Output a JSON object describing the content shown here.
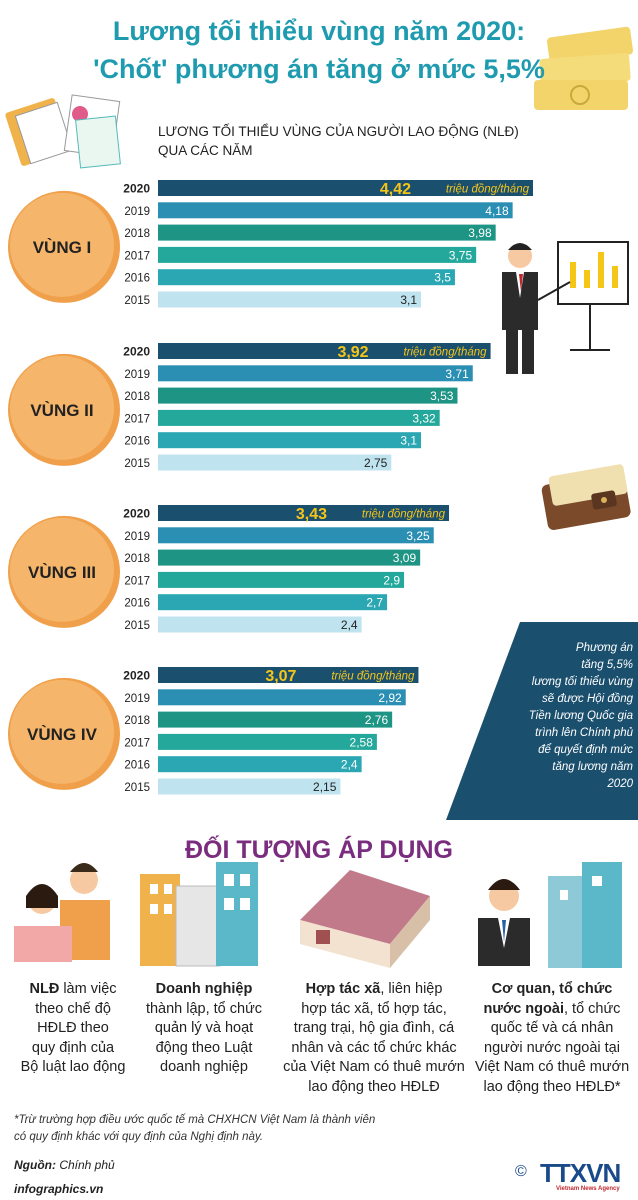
{
  "header": {
    "title_line1": "Lương tối thiểu vùng năm 2020:",
    "title_line2": "'Chốt' phương án tăng ở mức 5,5%",
    "subtitle_line1": "LƯƠNG TỐI THIỂU VÙNG CỦA NGƯỜI LAO ĐỘNG (NLĐ)",
    "subtitle_line2": "QUA CÁC NĂM"
  },
  "chart_data": {
    "type": "bar",
    "orientation": "horizontal",
    "unit_label": "triệu đồng/tháng",
    "groups": [
      {
        "name": "VÙNG I",
        "years": [
          "2020",
          "2019",
          "2018",
          "2017",
          "2016",
          "2015"
        ],
        "values": [
          4.42,
          4.18,
          3.98,
          3.75,
          3.5,
          3.1
        ],
        "value_labels": [
          "4,42",
          "4,18",
          "3,98",
          "3,75",
          "3,5",
          "3,1"
        ]
      },
      {
        "name": "VÙNG II",
        "years": [
          "2020",
          "2019",
          "2018",
          "2017",
          "2016",
          "2015"
        ],
        "values": [
          3.92,
          3.71,
          3.53,
          3.32,
          3.1,
          2.75
        ],
        "value_labels": [
          "3,92",
          "3,71",
          "3,53",
          "3,32",
          "3,1",
          "2,75"
        ]
      },
      {
        "name": "VÙNG III",
        "years": [
          "2020",
          "2019",
          "2018",
          "2017",
          "2016",
          "2015"
        ],
        "values": [
          3.43,
          3.25,
          3.09,
          2.9,
          2.7,
          2.4
        ],
        "value_labels": [
          "3,43",
          "3,25",
          "3,09",
          "2,9",
          "2,7",
          "2,4"
        ]
      },
      {
        "name": "VÙNG IV",
        "years": [
          "2020",
          "2019",
          "2018",
          "2017",
          "2016",
          "2015"
        ],
        "values": [
          3.07,
          2.92,
          2.76,
          2.58,
          2.4,
          2.15
        ],
        "value_labels": [
          "3,07",
          "2,92",
          "2,76",
          "2,58",
          "2,4",
          "2,15"
        ]
      }
    ],
    "colors": [
      "#1b4f6e",
      "#2a8fb3",
      "#1e9484",
      "#24a89c",
      "#2aa7b3",
      "#bfe3ef"
    ],
    "highlight_color": "#f5c518"
  },
  "note": {
    "lines": [
      "Phương án",
      "tăng 5,5%",
      "lương tối thiểu vùng",
      "sẽ được Hội đồng",
      "Tiền lương Quốc gia",
      "trình lên Chính phủ",
      "để quyết định mức",
      "tăng lương năm 2020"
    ]
  },
  "audience": {
    "title": "ĐỐI TƯỢNG ÁP DỤNG",
    "items": [
      {
        "bold": "NLĐ",
        "lines": [
          " làm việc",
          "theo chế độ",
          "HĐLĐ theo",
          "quy định của",
          "Bộ luật lao động"
        ]
      },
      {
        "bold": "Doanh nghiệp",
        "lines": [
          "",
          "thành lập, tổ chức",
          "quản lý và hoạt",
          "động theo Luật",
          "doanh nghiệp"
        ]
      },
      {
        "bold": "Hợp tác xã",
        "lines": [
          ", liên hiệp",
          "hợp tác xã, tổ hợp tác,",
          "trang trại, hộ gia đình, cá",
          "nhân và các tổ chức khác",
          "của Việt Nam có thuê mướn",
          "lao động theo HĐLĐ"
        ]
      },
      {
        "bold": "Cơ quan, tổ chức",
        "bold2": "nước ngoài",
        "lines": [
          ", tổ chức",
          "quốc tế và cá nhân",
          "người nước ngoài tại",
          "Việt Nam có thuê mướn",
          "lao động theo HĐLĐ*"
        ]
      }
    ]
  },
  "footer": {
    "footnote_line1": "*Trừ trường hợp điều ước quốc tế mà CHXHCN Việt Nam là thành viên",
    "footnote_line2": "có quy định khác với quy định của Nghị định này.",
    "source_label": "Nguồn:",
    "source_value": "Chính phủ",
    "site": "infographics.vn",
    "logo": "TTXVN",
    "logo_sub": "Vietnam News Agency",
    "copyright": "©"
  }
}
